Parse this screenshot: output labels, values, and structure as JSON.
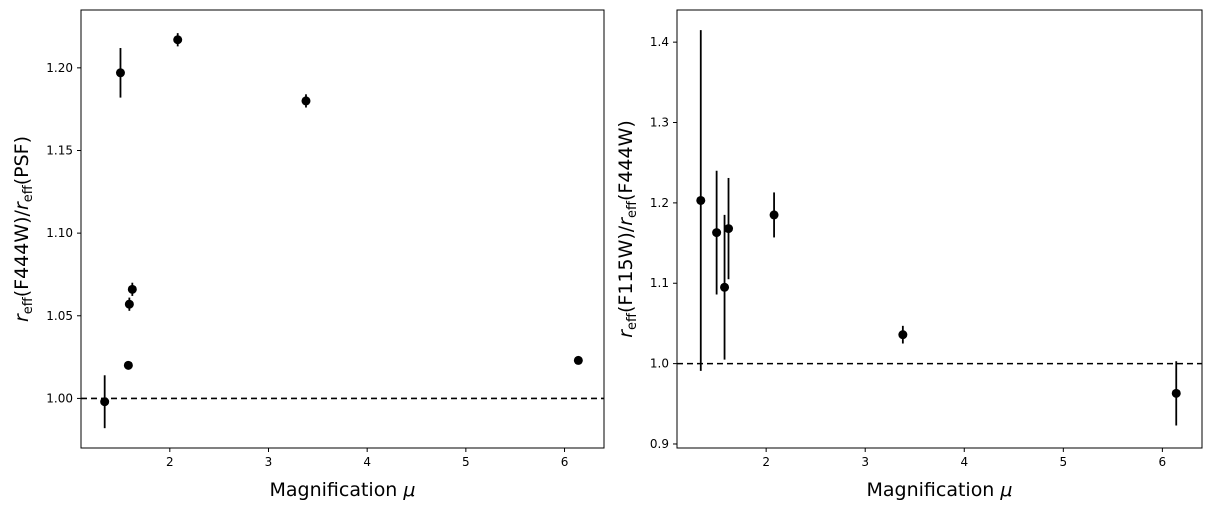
{
  "chart_data": [
    {
      "type": "scatter",
      "title": "",
      "xlabel": {
        "main": "Magnification",
        "symbol": "μ"
      },
      "ylabel": {
        "r": "r",
        "sub1": "eff",
        "part1": "(F444W)/",
        "r2": "r",
        "sub2": "eff",
        "part2": "(PSF)"
      },
      "xlim": [
        1.1,
        6.4
      ],
      "ylim": [
        0.97,
        1.235
      ],
      "xticks": [
        2,
        3,
        4,
        5,
        6
      ],
      "yticks": [
        1.0,
        1.05,
        1.1,
        1.15,
        1.2
      ],
      "reference_line": 1.0,
      "grid": false,
      "points": [
        {
          "x": 1.34,
          "y": 0.998,
          "err": 0.016
        },
        {
          "x": 1.5,
          "y": 1.197,
          "err": 0.015
        },
        {
          "x": 1.58,
          "y": 1.02,
          "err": 0.002
        },
        {
          "x": 1.59,
          "y": 1.057,
          "err": 0.004
        },
        {
          "x": 1.62,
          "y": 1.066,
          "err": 0.004
        },
        {
          "x": 2.08,
          "y": 1.217,
          "err": 0.004
        },
        {
          "x": 3.38,
          "y": 1.18,
          "err": 0.004
        },
        {
          "x": 6.14,
          "y": 1.023,
          "err": 0.002
        }
      ]
    },
    {
      "type": "scatter",
      "title": "",
      "xlabel": {
        "main": "Magnification",
        "symbol": "μ"
      },
      "ylabel": {
        "r": "r",
        "sub1": "eff",
        "part1": "(F115W)/",
        "r2": "r",
        "sub2": "eff",
        "part2": "(F444W)"
      },
      "xlim": [
        1.1,
        6.4
      ],
      "ylim": [
        0.895,
        1.44
      ],
      "xticks": [
        2,
        3,
        4,
        5,
        6
      ],
      "yticks": [
        0.9,
        1.0,
        1.1,
        1.2,
        1.3,
        1.4
      ],
      "reference_line": 1.0,
      "grid": false,
      "points": [
        {
          "x": 1.34,
          "y": 1.203,
          "err": 0.212
        },
        {
          "x": 1.5,
          "y": 1.163,
          "err": 0.077
        },
        {
          "x": 1.58,
          "y": 1.095,
          "err": 0.09
        },
        {
          "x": 1.62,
          "y": 1.168,
          "err": 0.063
        },
        {
          "x": 2.08,
          "y": 1.185,
          "err": 0.028
        },
        {
          "x": 3.38,
          "y": 1.036,
          "err": 0.011
        },
        {
          "x": 6.14,
          "y": 0.963,
          "err": 0.04
        }
      ]
    }
  ]
}
